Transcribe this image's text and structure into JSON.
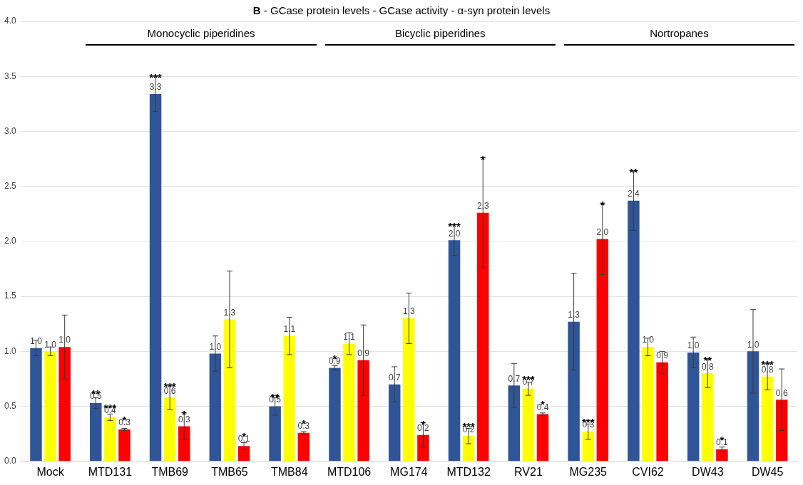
{
  "chart_data": {
    "type": "bar",
    "title": "B - GCase protein levels - GCase activity - α-syn protein levels",
    "categories": [
      "Mock",
      "MTD131",
      "TMB69",
      "TMB65",
      "TMB84",
      "MTD106",
      "MG174",
      "MTD132",
      "RV21",
      "MG235",
      "CVI62",
      "DW43",
      "DW45"
    ],
    "series": [
      {
        "color": "#2f5597",
        "values": [
          1.03,
          0.53,
          3.34,
          0.98,
          0.5,
          0.85,
          0.7,
          2.01,
          0.69,
          1.27,
          2.37,
          0.99,
          1.0
        ],
        "errors": [
          0.07,
          0.05,
          0.16,
          0.16,
          0.08,
          0.02,
          0.16,
          0.14,
          0.2,
          0.44,
          0.27,
          0.14,
          0.38
        ],
        "value_labels": [
          "1.0",
          "0.5",
          "3.3",
          "1.0",
          "0.5",
          "0.9",
          "0.7",
          "2.0",
          "0.7",
          "1.3",
          "2.4",
          "1.0",
          "1.0"
        ]
      },
      {
        "color": "#ffff00",
        "values": [
          1.0,
          0.4,
          0.58,
          1.29,
          1.14,
          1.07,
          1.3,
          0.23,
          0.66,
          0.27,
          1.04,
          0.8,
          0.77
        ],
        "errors": [
          0.04,
          0.03,
          0.11,
          0.44,
          0.17,
          0.1,
          0.23,
          0.07,
          0.06,
          0.07,
          0.08,
          0.13,
          0.12
        ],
        "value_labels": [
          "1.0",
          "0.4",
          "0.6",
          "1.3",
          "1.1",
          "1.1",
          "1.3",
          "0.2",
          "0.7",
          "0.3",
          "1.0",
          "0.8",
          "0.8"
        ]
      },
      {
        "color": "#ff0000",
        "values": [
          1.04,
          0.29,
          0.32,
          0.14,
          0.26,
          0.92,
          0.24,
          2.26,
          0.43,
          2.02,
          0.9,
          0.11,
          0.56
        ],
        "errors": [
          0.29,
          0.01,
          0.12,
          0.03,
          0.01,
          0.32,
          0.11,
          0.5,
          0.01,
          0.32,
          0.1,
          0.02,
          0.28
        ],
        "value_labels": [
          "1.0",
          "0.3",
          "0.3",
          "0.1",
          "0.3",
          "0.9",
          "0.2",
          "2.3",
          "0.4",
          "2.0",
          "0.9",
          "0.1",
          "0.6"
        ]
      }
    ],
    "ylim": [
      0,
      4
    ],
    "yticks": [
      {
        "value": 0,
        "label": "0.0"
      },
      0.5,
      {
        "value": 1,
        "label": "1.0"
      },
      1.5,
      {
        "value": 2,
        "label": "2.0"
      },
      2.5,
      {
        "value": 3,
        "label": "3.0"
      },
      3.5,
      {
        "value": 4,
        "label": "4.0"
      }
    ],
    "grid": "y",
    "legend": false,
    "annotations": [
      "Monocyclic piperidines",
      "Bicyclic piperidines",
      "Nortropanes",
      "**",
      "***",
      "*",
      "***",
      "***",
      "*",
      "*",
      "**",
      "*",
      "*",
      "*",
      "***",
      "***",
      "*",
      "***",
      "*",
      "***",
      "*",
      "**",
      "**",
      "*",
      "***"
    ]
  }
}
